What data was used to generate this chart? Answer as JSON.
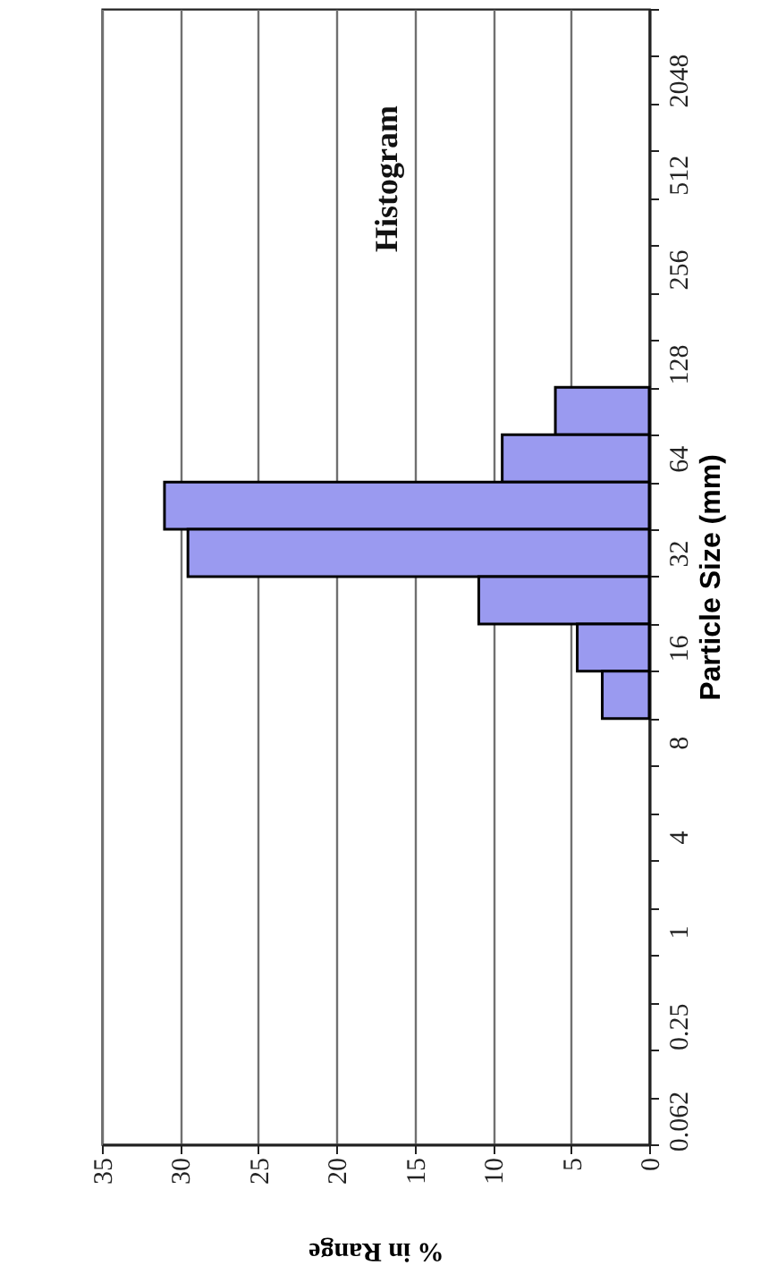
{
  "chart_data": {
    "type": "bar",
    "orientation": "horizontal",
    "title": "Histogram",
    "xlabel": "% in Range",
    "ylabel": "Particle Size (mm)",
    "categories": [
      null,
      "2048",
      null,
      "512",
      null,
      "256",
      null,
      "128",
      null,
      "64",
      null,
      "32",
      null,
      "16",
      null,
      "8",
      null,
      "4",
      null,
      "1",
      null,
      "0.25",
      null,
      "0.062"
    ],
    "values": [
      null,
      null,
      null,
      null,
      null,
      null,
      null,
      null,
      6,
      9.4,
      31,
      29.5,
      10.9,
      4.6,
      3,
      null,
      null,
      null,
      null,
      null,
      null,
      null,
      null,
      null
    ],
    "color": "#9a9af0",
    "xlim": [
      35,
      0
    ],
    "xticks": [
      35,
      30,
      25,
      20,
      15,
      10,
      5,
      0
    ],
    "grid": "x"
  }
}
